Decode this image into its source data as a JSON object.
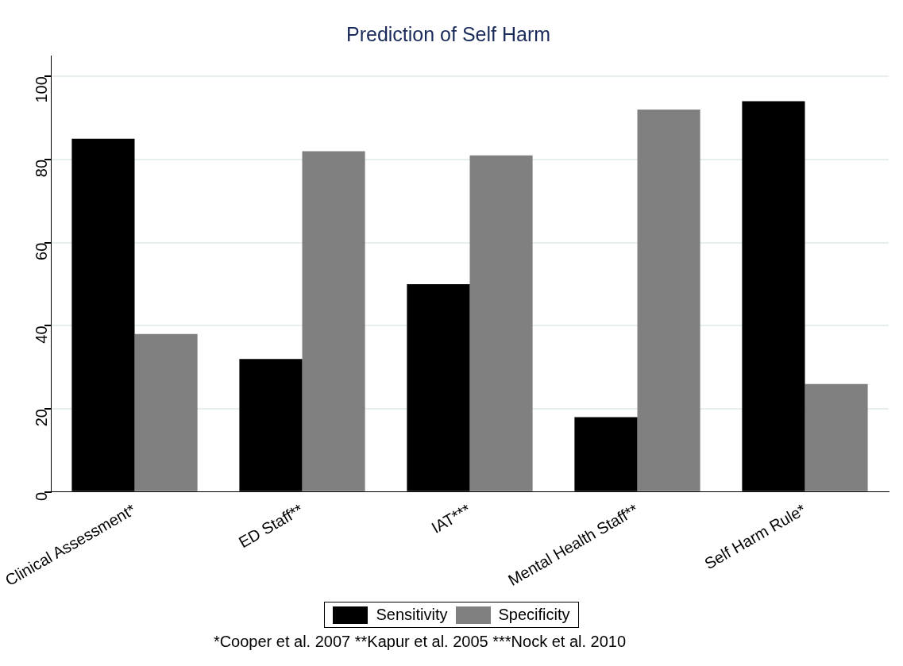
{
  "chart_data": {
    "type": "bar",
    "title": "Prediction of Self Harm",
    "categories": [
      "Clinical Assessment*",
      "ED Staff**",
      "IAT***",
      "Mental Health Staff**",
      "Self Harm Rule*"
    ],
    "series": [
      {
        "name": "Sensitivity",
        "color": "#000000",
        "values": [
          85,
          32,
          50,
          18,
          94
        ]
      },
      {
        "name": "Specificity",
        "color": "#808080",
        "values": [
          38,
          82,
          81,
          92,
          26
        ]
      }
    ],
    "ylim": [
      0,
      105
    ],
    "yticks": [
      0,
      20,
      40,
      60,
      80,
      100
    ],
    "grid": "y",
    "legend": "bottom",
    "annotations": [
      "*Cooper et al. 2007  **Kapur et al. 2005  ***Nock et al. 2010"
    ]
  }
}
